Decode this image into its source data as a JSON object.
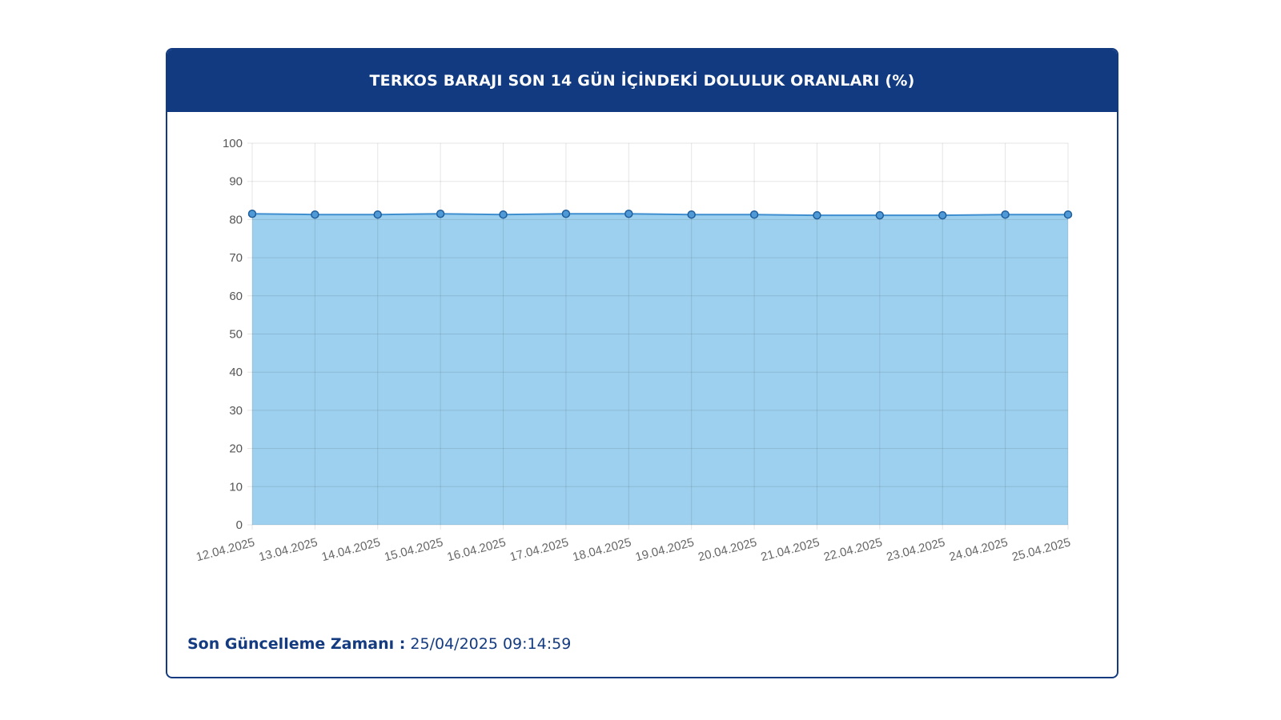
{
  "header": {
    "title": "TERKOS BARAJI SON 14 GÜN İÇİNDEKİ DOLULUK ORANLARI (%)"
  },
  "footer": {
    "label": "Son Güncelleme Zamanı :",
    "value": "25/04/2025 09:14:59"
  },
  "colors": {
    "header_bg": "#113a81",
    "area_fill": "#9dd0ee",
    "line": "#3f8fd0",
    "text_dark": "#143b80"
  },
  "chart_data": {
    "type": "area",
    "title": "TERKOS BARAJI SON 14 GÜN İÇİNDEKİ DOLULUK ORANLARI (%)",
    "categories": [
      "12.04.2025",
      "13.04.2025",
      "14.04.2025",
      "15.04.2025",
      "16.04.2025",
      "17.04.2025",
      "18.04.2025",
      "19.04.2025",
      "20.04.2025",
      "21.04.2025",
      "22.04.2025",
      "23.04.2025",
      "24.04.2025",
      "25.04.2025"
    ],
    "series": [
      {
        "values": [
          81.5,
          81.3,
          81.3,
          81.5,
          81.3,
          81.5,
          81.5,
          81.3,
          81.3,
          81.1,
          81.1,
          81.1,
          81.3,
          81.3
        ]
      }
    ],
    "ylim": [
      0,
      100
    ],
    "yticks": [
      0,
      10,
      20,
      30,
      40,
      50,
      60,
      70,
      80,
      90,
      100
    ],
    "grid": true,
    "xlabel": "",
    "ylabel": ""
  }
}
